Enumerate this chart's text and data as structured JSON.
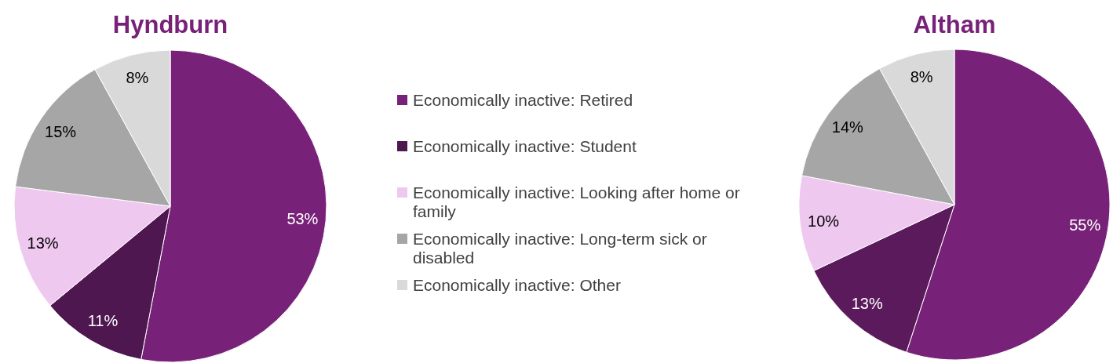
{
  "chart_data": {
    "type": "pie",
    "categories": [
      "Economically inactive: Retired",
      "Economically inactive: Student",
      "Economically inactive: Looking after home or family",
      "Economically inactive: Long-term sick or disabled",
      "Economically inactive: Other"
    ],
    "legend": "center",
    "series": [
      {
        "name": "Hyndburn",
        "values": [
          53,
          11,
          13,
          15,
          8
        ],
        "value_labels": [
          "53%",
          "11%",
          "13%",
          "15%",
          "8%"
        ],
        "colors": [
          "#782178",
          "#4e1750",
          "#efc8ef",
          "#a6a6a6",
          "#d9d9d9"
        ]
      },
      {
        "name": "Altham",
        "values": [
          55,
          13,
          10,
          14,
          8
        ],
        "value_labels": [
          "55%",
          "13%",
          "10%",
          "14%",
          "8%"
        ],
        "colors": [
          "#782178",
          "#5a1a5b",
          "#efc8ef",
          "#a6a6a6",
          "#d9d9d9"
        ]
      }
    ]
  }
}
